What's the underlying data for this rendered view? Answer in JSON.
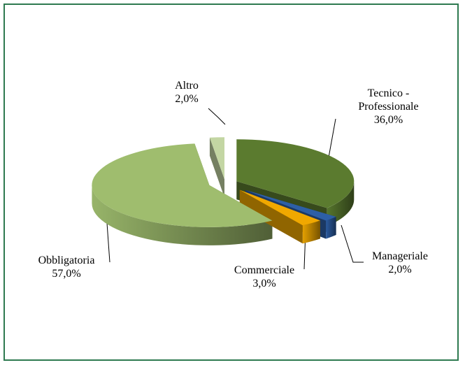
{
  "chart_data": {
    "type": "pie",
    "categories": [
      "Tecnico - Professionale",
      "Manageriale",
      "Commerciale",
      "Obbligatoria",
      "Altro"
    ],
    "values": [
      36,
      2,
      3,
      57,
      2
    ],
    "value_labels": [
      "36,0%",
      "2,0%",
      "3,0%",
      "57,0%",
      "2,0%"
    ],
    "colors": [
      "#5b7b2f",
      "#2d5fa6",
      "#f0a800",
      "#9fbd6e",
      "#c3d6a3"
    ],
    "exploded": true,
    "three_d": true
  }
}
